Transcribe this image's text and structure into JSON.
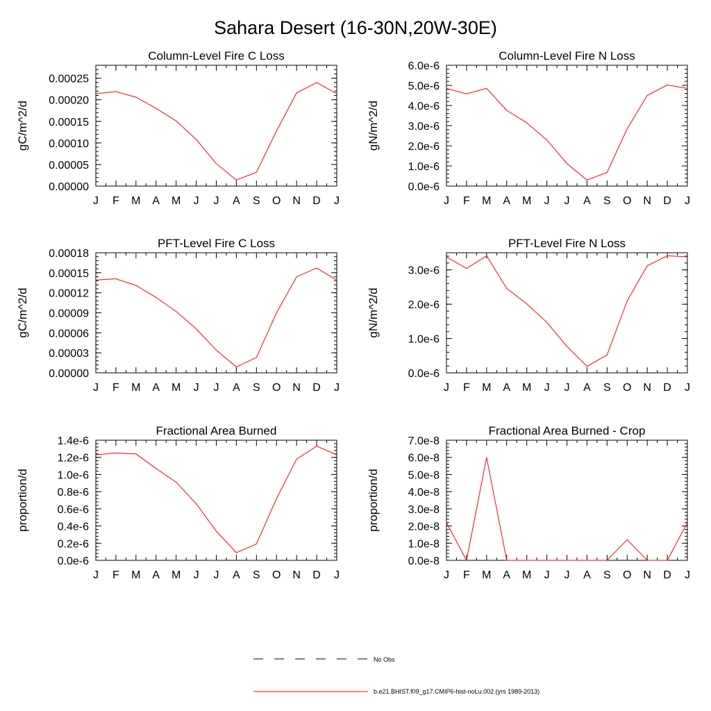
{
  "figure": {
    "title": "Sahara Desert (16-30N,20W-30E)"
  },
  "legend": {
    "entries": [
      {
        "label": "No Obs",
        "style": "dashed",
        "color": "#000000"
      },
      {
        "label": "b.e21.BHIST.f09_g17.CMIP6-hist-noLu.002 (yrs 1989-2013)",
        "style": "solid",
        "color": "#ff0000"
      }
    ]
  },
  "chart_data": [
    {
      "type": "line",
      "title": "Column-Level Fire C Loss",
      "xlabel": "",
      "ylabel": "gC/m^2/d",
      "categories": [
        "J",
        "F",
        "M",
        "A",
        "M",
        "J",
        "J",
        "A",
        "S",
        "O",
        "N",
        "D",
        "J"
      ],
      "ylim": [
        0,
        0.00028
      ],
      "yticks": [
        0,
        5e-05,
        0.0001,
        0.00015,
        0.0002,
        0.00025
      ],
      "yticklabels": [
        "0.00000",
        "0.00005",
        "0.00010",
        "0.00015",
        "0.00020",
        "0.00025"
      ],
      "grid": false,
      "series": [
        {
          "color": "#ff0000",
          "values": [
            0.000214,
            0.000219,
            0.000206,
            0.00018,
            0.000151,
            0.000108,
            5.2e-05,
            1.4e-05,
            3.2e-05,
            0.000128,
            0.000216,
            0.00024,
            0.000214
          ]
        }
      ]
    },
    {
      "type": "line",
      "title": "Column-Level Fire N Loss",
      "xlabel": "",
      "ylabel": "gN/m^2/d",
      "categories": [
        "J",
        "F",
        "M",
        "A",
        "M",
        "J",
        "J",
        "A",
        "S",
        "O",
        "N",
        "D",
        "J"
      ],
      "ylim": [
        0,
        6e-06
      ],
      "yticks": [
        0,
        1e-06,
        2e-06,
        3e-06,
        4e-06,
        5e-06,
        6e-06
      ],
      "yticklabels": [
        "0.0e-6",
        "1.0e-6",
        "2.0e-6",
        "3.0e-6",
        "4.0e-6",
        "5.0e-6",
        "6.0e-6"
      ],
      "grid": false,
      "series": [
        {
          "color": "#ff0000",
          "values": [
            4.85e-06,
            4.58e-06,
            4.85e-06,
            3.76e-06,
            3.14e-06,
            2.29e-06,
            1.12e-06,
            3e-07,
            6.8e-07,
            2.85e-06,
            4.5e-06,
            5.02e-06,
            4.85e-06
          ]
        }
      ]
    },
    {
      "type": "line",
      "title": "PFT-Level Fire C Loss",
      "xlabel": "",
      "ylabel": "gC/m^2/d",
      "categories": [
        "J",
        "F",
        "M",
        "A",
        "M",
        "J",
        "J",
        "A",
        "S",
        "O",
        "N",
        "D",
        "J"
      ],
      "ylim": [
        0,
        0.00018
      ],
      "yticks": [
        0,
        3e-05,
        6e-05,
        9e-05,
        0.00012,
        0.00015,
        0.00018
      ],
      "yticklabels": [
        "0.00000",
        "0.00003",
        "0.00006",
        "0.00009",
        "0.00012",
        "0.00015",
        "0.00018"
      ],
      "grid": false,
      "series": [
        {
          "color": "#ff0000",
          "values": [
            0.000139,
            0.000141,
            0.000131,
            0.000113,
            9.2e-05,
            6.6e-05,
            3.4e-05,
            9e-06,
            2.3e-05,
            9e-05,
            0.000144,
            0.000157,
            0.000139
          ]
        }
      ]
    },
    {
      "type": "line",
      "title": "PFT-Level Fire N Loss",
      "xlabel": "",
      "ylabel": "gN/m^2/d",
      "categories": [
        "J",
        "F",
        "M",
        "A",
        "M",
        "J",
        "J",
        "A",
        "S",
        "O",
        "N",
        "D",
        "J"
      ],
      "ylim": [
        0,
        3.5e-06
      ],
      "yticks": [
        0,
        1e-06,
        2e-06,
        3e-06
      ],
      "yticklabels": [
        "0.0e-6",
        "1.0e-6",
        "2.0e-6",
        "3.0e-6"
      ],
      "grid": false,
      "series": [
        {
          "color": "#ff0000",
          "values": [
            3.38e-06,
            3.04e-06,
            3.41e-06,
            2.46e-06,
            2.01e-06,
            1.47e-06,
            7.7e-07,
            1.9e-07,
            5.2e-07,
            2.1e-06,
            3.12e-06,
            3.41e-06,
            3.38e-06
          ]
        }
      ]
    },
    {
      "type": "line",
      "title": "Fractional Area Burned",
      "xlabel": "",
      "ylabel": "proportion/d",
      "categories": [
        "J",
        "F",
        "M",
        "A",
        "M",
        "J",
        "J",
        "A",
        "S",
        "O",
        "N",
        "D",
        "J"
      ],
      "ylim": [
        0,
        1.4e-06
      ],
      "yticks": [
        0,
        2e-07,
        4e-07,
        6e-07,
        8e-07,
        1e-06,
        1.2e-06,
        1.4e-06
      ],
      "yticklabels": [
        "0.0e-6",
        "0.2e-6",
        "0.4e-6",
        "0.6e-6",
        "0.8e-6",
        "1.0e-6",
        "1.2e-6",
        "1.4e-6"
      ],
      "grid": false,
      "series": [
        {
          "color": "#ff0000",
          "values": [
            1.23e-06,
            1.25e-06,
            1.24e-06,
            1.07e-06,
            9.1e-07,
            6.6e-07,
            3.4e-07,
            9e-08,
            1.9e-07,
            7.2e-07,
            1.18e-06,
            1.33e-06,
            1.23e-06
          ]
        }
      ]
    },
    {
      "type": "line",
      "title": "Fractional Area Burned - Crop",
      "xlabel": "",
      "ylabel": "proportion/d",
      "categories": [
        "J",
        "F",
        "M",
        "A",
        "M",
        "J",
        "J",
        "A",
        "S",
        "O",
        "N",
        "D",
        "J"
      ],
      "ylim": [
        0,
        7e-08
      ],
      "yticks": [
        0,
        1e-08,
        2e-08,
        3e-08,
        4e-08,
        5e-08,
        6e-08,
        7e-08
      ],
      "yticklabels": [
        "0.0e-8",
        "1.0e-8",
        "2.0e-8",
        "3.0e-8",
        "4.0e-8",
        "5.0e-8",
        "6.0e-8",
        "7.0e-8"
      ],
      "grid": false,
      "series": [
        {
          "color": "#ff0000",
          "values": [
            2.2e-08,
            0,
            6e-08,
            0,
            0,
            0,
            0,
            0,
            0,
            1.2e-08,
            0,
            0,
            2.2e-08
          ]
        }
      ]
    }
  ]
}
